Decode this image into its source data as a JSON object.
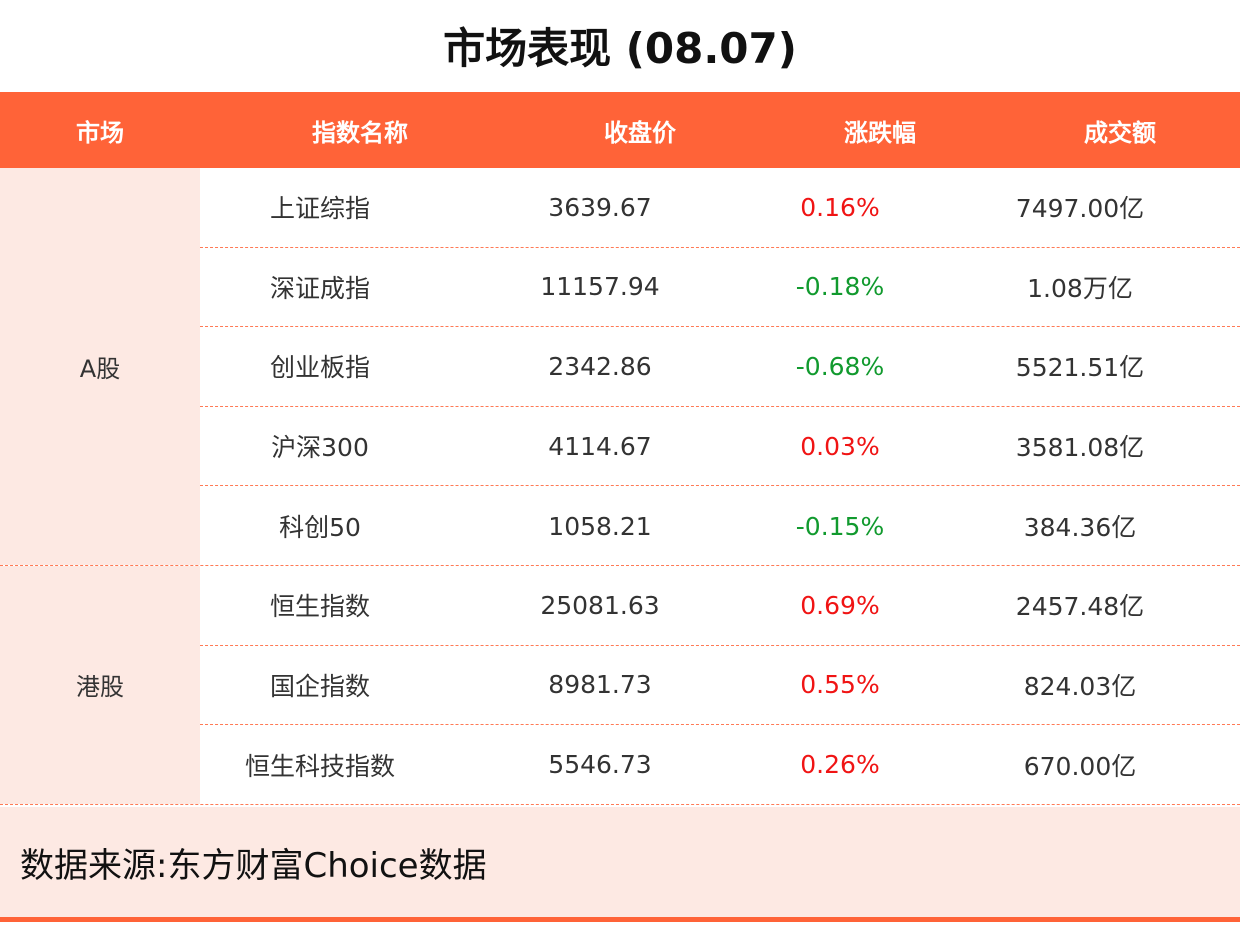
{
  "title": "市场表现 (08.07)",
  "headers": [
    "市场",
    "指数名称",
    "收盘价",
    "涨跌幅",
    "成交额"
  ],
  "colors": {
    "accent": "#ff6338",
    "up": "#f01414",
    "down": "#119a2e",
    "tint": "#fde9e3"
  },
  "groups": [
    {
      "market": "A股",
      "rows": [
        {
          "name": "上证综指",
          "close": "3639.67",
          "change": "0.16%",
          "dir": "up",
          "volume": "7497.00亿"
        },
        {
          "name": "深证成指",
          "close": "11157.94",
          "change": "-0.18%",
          "dir": "down",
          "volume": "1.08万亿"
        },
        {
          "name": "创业板指",
          "close": "2342.86",
          "change": "-0.68%",
          "dir": "down",
          "volume": "5521.51亿"
        },
        {
          "name": "沪深300",
          "close": "4114.67",
          "change": "0.03%",
          "dir": "up",
          "volume": "3581.08亿"
        },
        {
          "name": "科创50",
          "close": "1058.21",
          "change": "-0.15%",
          "dir": "down",
          "volume": "384.36亿"
        }
      ]
    },
    {
      "market": "港股",
      "rows": [
        {
          "name": "恒生指数",
          "close": "25081.63",
          "change": "0.69%",
          "dir": "up",
          "volume": "2457.48亿"
        },
        {
          "name": "国企指数",
          "close": "8981.73",
          "change": "0.55%",
          "dir": "up",
          "volume": "824.03亿"
        },
        {
          "name": "恒生科技指数",
          "close": "5546.73",
          "change": "0.26%",
          "dir": "up",
          "volume": "670.00亿"
        }
      ]
    }
  ],
  "footer": "数据来源:东方财富Choice数据"
}
